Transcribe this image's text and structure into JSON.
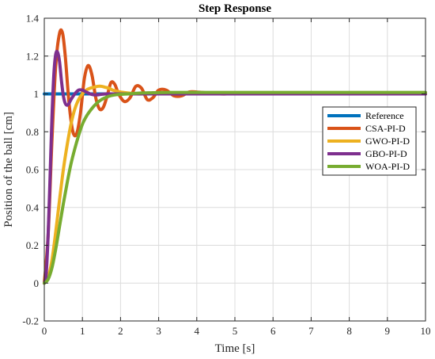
{
  "chart_data": {
    "type": "line",
    "title": "Step Response",
    "xlabel": "Time [s]",
    "ylabel": "Position of the ball [cm]",
    "xlim": [
      0,
      10
    ],
    "ylim": [
      -0.2,
      1.4
    ],
    "x_ticks": [
      "0",
      "1",
      "2",
      "3",
      "4",
      "5",
      "6",
      "7",
      "8",
      "9",
      "10"
    ],
    "y_ticks": [
      "-0.2",
      "0",
      "0.2",
      "0.4",
      "0.6",
      "0.8",
      "1",
      "1.2",
      "1.4"
    ],
    "grid": true,
    "legend_position": "right",
    "series": [
      {
        "name": "Reference",
        "color": "#0072BD",
        "x": [
          0,
          10
        ],
        "y": [
          1,
          1
        ]
      },
      {
        "name": "CSA-PI-D",
        "color": "#D95319",
        "x": [
          0,
          0.1,
          0.2,
          0.3,
          0.4,
          0.48,
          0.55,
          0.65,
          0.75,
          0.85,
          0.95,
          1.05,
          1.15,
          1.25,
          1.35,
          1.45,
          1.55,
          1.65,
          1.75,
          1.85,
          1.95,
          2.1,
          2.25,
          2.4,
          2.55,
          2.7,
          2.85,
          3.0,
          3.2,
          3.4,
          3.6,
          3.8,
          4.0,
          4.3,
          4.6,
          5.0,
          6.0,
          7.0,
          8.0,
          9.0,
          10.0
        ],
        "y": [
          0,
          0.25,
          0.75,
          1.15,
          1.32,
          1.32,
          1.2,
          0.95,
          0.8,
          0.79,
          0.9,
          1.08,
          1.15,
          1.1,
          0.98,
          0.92,
          0.93,
          0.99,
          1.06,
          1.05,
          1.0,
          0.96,
          0.98,
          1.04,
          1.03,
          0.97,
          0.98,
          1.02,
          1.02,
          0.99,
          0.99,
          1.01,
          1.01,
          1.005,
          1.0,
          1.0,
          1.0,
          1.0,
          1.0,
          1.0,
          1.0
        ]
      },
      {
        "name": "GWO-PI-D",
        "color": "#EDB120",
        "x": [
          0,
          0.1,
          0.2,
          0.3,
          0.4,
          0.5,
          0.6,
          0.7,
          0.8,
          0.9,
          1.0,
          1.1,
          1.2,
          1.3,
          1.4,
          1.5,
          1.6,
          1.7,
          1.8,
          2.0,
          2.2,
          2.4,
          2.7,
          3.0,
          3.5,
          4.0,
          5.0,
          6.0,
          8.0,
          10.0
        ],
        "y": [
          0,
          0.03,
          0.12,
          0.27,
          0.44,
          0.6,
          0.73,
          0.84,
          0.92,
          0.97,
          1.0,
          1.02,
          1.03,
          1.035,
          1.04,
          1.04,
          1.035,
          1.03,
          1.02,
          1.01,
          1.005,
          1.0,
          1.0,
          1.0,
          1.0,
          1.0,
          1.0,
          1.0,
          1.0,
          1.0
        ]
      },
      {
        "name": "GBO-PI-D",
        "color": "#7E2F8E",
        "x": [
          0,
          0.05,
          0.1,
          0.15,
          0.2,
          0.25,
          0.3,
          0.35,
          0.4,
          0.45,
          0.5,
          0.55,
          0.6,
          0.65,
          0.7,
          0.8,
          0.9,
          1.0,
          1.1,
          1.2,
          1.3,
          1.4,
          1.6,
          1.8,
          2.0,
          2.5,
          3.0,
          4.0,
          6.0,
          8.0,
          10.0
        ],
        "y": [
          0,
          0.05,
          0.25,
          0.55,
          0.87,
          1.1,
          1.21,
          1.22,
          1.17,
          1.07,
          0.99,
          0.95,
          0.94,
          0.95,
          0.97,
          1.0,
          1.02,
          1.02,
          1.01,
          1.0,
          0.995,
          0.995,
          1.0,
          1.0,
          1.0,
          1.0,
          1.0,
          1.0,
          1.0,
          1.0,
          1.0
        ]
      },
      {
        "name": "WOA-PI-D",
        "color": "#77AC30",
        "x": [
          0,
          0.1,
          0.2,
          0.3,
          0.4,
          0.5,
          0.6,
          0.7,
          0.8,
          0.9,
          1.0,
          1.1,
          1.2,
          1.3,
          1.4,
          1.5,
          1.6,
          1.7,
          1.8,
          1.9,
          2.0,
          2.2,
          2.4,
          2.6,
          2.8,
          3.0,
          3.5,
          4.0,
          5.0,
          6.0,
          8.0,
          10.0
        ],
        "y": [
          0,
          0.02,
          0.08,
          0.18,
          0.3,
          0.42,
          0.53,
          0.63,
          0.71,
          0.78,
          0.84,
          0.88,
          0.91,
          0.935,
          0.955,
          0.97,
          0.98,
          0.988,
          0.993,
          0.996,
          0.998,
          1.0,
          1.003,
          1.005,
          1.006,
          1.007,
          1.008,
          1.008,
          1.008,
          1.008,
          1.008,
          1.008
        ]
      }
    ]
  }
}
